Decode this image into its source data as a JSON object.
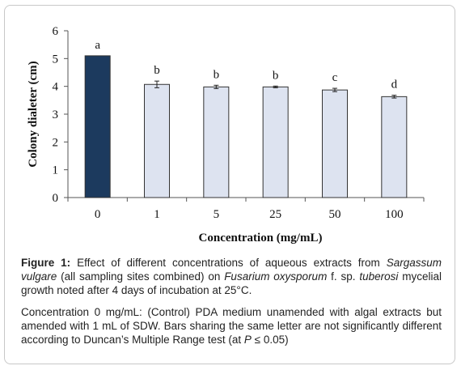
{
  "chart_data": {
    "type": "bar",
    "categories": [
      "0",
      "1",
      "5",
      "25",
      "50",
      "100"
    ],
    "values": [
      5.1,
      4.07,
      3.98,
      3.98,
      3.87,
      3.63
    ],
    "errors": [
      0.0,
      0.12,
      0.06,
      0.03,
      0.06,
      0.05
    ],
    "letters": [
      "a",
      "b",
      "b",
      "b",
      "c",
      "d"
    ],
    "ylabel": "Colony dialeter (cm)",
    "xlabel": "Concentration (mg/mL)",
    "ylim": [
      0,
      6
    ],
    "yticks": [
      "0",
      "1",
      "2",
      "3",
      "4",
      "5",
      "6"
    ],
    "grid": false,
    "legend": "none",
    "colors": {
      "control_bar": "#1c3a5e",
      "treatment_bar": "#dde3f0",
      "outline": "#333333"
    }
  },
  "caption": {
    "figure_label": "Figure 1:",
    "p1": [
      {
        "t": " Effect of different concentrations of aqueous extracts from ",
        "i": false
      },
      {
        "t": "Sargassum vulgare",
        "i": true
      },
      {
        "t": " (all sampling sites combined) on ",
        "i": false
      },
      {
        "t": "Fusarium oxysporum",
        "i": true
      },
      {
        "t": " f. sp. ",
        "i": false
      },
      {
        "t": "tuberosi",
        "i": true
      },
      {
        "t": " mycelial growth noted after 4 days of incubation at 25°C.",
        "i": false
      }
    ],
    "p2": [
      {
        "t": "Concentration 0 mg/mL: (Control) PDA medium unamended with algal extracts but amended with 1 mL of SDW. Bars sharing the same letter are not significantly different according to Duncan’s Multiple Range test (at ",
        "i": false
      },
      {
        "t": "P",
        "i": true
      },
      {
        "t": " ≤ 0.05)",
        "i": false
      }
    ]
  }
}
